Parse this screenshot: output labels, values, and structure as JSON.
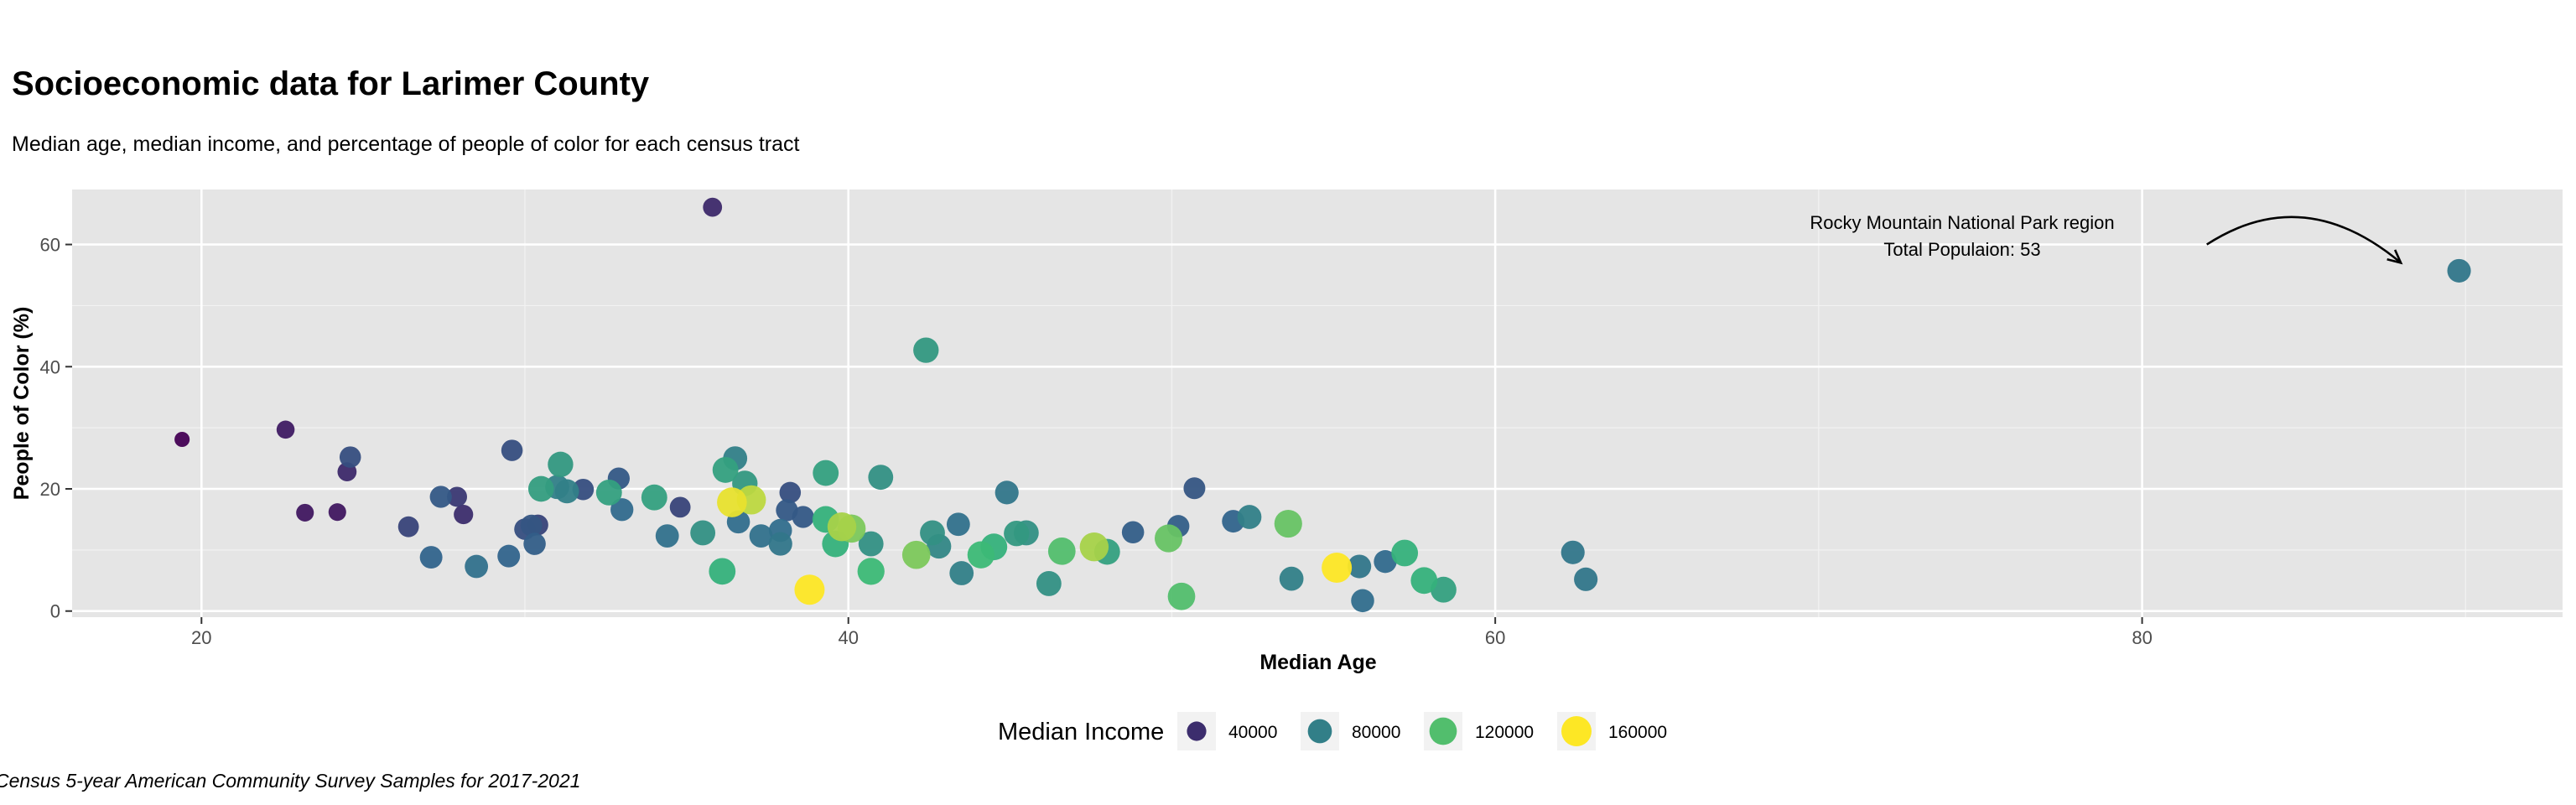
{
  "chart_data": {
    "type": "scatter",
    "title": "Socioeconomic data for Larimer County",
    "subtitle": "Median age, median income, and percentage of people of color for each census tract",
    "xlabel": "Median Age",
    "ylabel": "People of Color (%)",
    "xlim": [
      16,
      93
    ],
    "ylim": [
      -1,
      69
    ],
    "x_ticks": [
      20,
      40,
      60,
      80
    ],
    "y_ticks": [
      0,
      20,
      40,
      60
    ],
    "grid": true,
    "legend": {
      "title": "Median Income",
      "position": "bottom",
      "entries": [
        {
          "label": "40000",
          "value": 40000
        },
        {
          "label": "80000",
          "value": 80000
        },
        {
          "label": "120000",
          "value": 120000
        },
        {
          "label": "160000",
          "value": 160000
        }
      ]
    },
    "annotation": {
      "lines": [
        "Rocky Mountain National Park region",
        "Total Populaion: 53"
      ],
      "arrow_from": [
        82,
        60
      ],
      "arrow_to": [
        88,
        57
      ]
    },
    "caption": "Census 5-year American Community Survey Samples for 2017-2021",
    "color_scale": [
      "#440154",
      "#31688e",
      "#35b779",
      "#fde725"
    ],
    "points": [
      {
        "x": 19.4,
        "y": 28.1,
        "income": 20000
      },
      {
        "x": 22.6,
        "y": 29.7,
        "income": 32000
      },
      {
        "x": 23.2,
        "y": 16.1,
        "income": 30000
      },
      {
        "x": 24.2,
        "y": 16.2,
        "income": 30000
      },
      {
        "x": 24.5,
        "y": 22.8,
        "income": 38000
      },
      {
        "x": 24.6,
        "y": 25.2,
        "income": 55000
      },
      {
        "x": 26.4,
        "y": 13.8,
        "income": 50000
      },
      {
        "x": 27.1,
        "y": 8.8,
        "income": 65000
      },
      {
        "x": 27.4,
        "y": 18.7,
        "income": 60000
      },
      {
        "x": 27.9,
        "y": 18.7,
        "income": 45000
      },
      {
        "x": 28.1,
        "y": 15.8,
        "income": 40000
      },
      {
        "x": 28.5,
        "y": 7.3,
        "income": 72000
      },
      {
        "x": 29.5,
        "y": 9.0,
        "income": 65000
      },
      {
        "x": 29.6,
        "y": 26.3,
        "income": 55000
      },
      {
        "x": 30.0,
        "y": 13.4,
        "income": 55000
      },
      {
        "x": 30.2,
        "y": 14.0,
        "income": 58000
      },
      {
        "x": 30.3,
        "y": 11.0,
        "income": 62000
      },
      {
        "x": 30.4,
        "y": 14.1,
        "income": 50000
      },
      {
        "x": 30.5,
        "y": 20.0,
        "income": 98000
      },
      {
        "x": 31.0,
        "y": 20.3,
        "income": 80000
      },
      {
        "x": 31.1,
        "y": 24.0,
        "income": 95000
      },
      {
        "x": 31.3,
        "y": 19.6,
        "income": 80000
      },
      {
        "x": 31.8,
        "y": 19.9,
        "income": 55000
      },
      {
        "x": 32.6,
        "y": 19.4,
        "income": 100000
      },
      {
        "x": 32.9,
        "y": 21.7,
        "income": 60000
      },
      {
        "x": 33.0,
        "y": 16.6,
        "income": 68000
      },
      {
        "x": 34.0,
        "y": 18.6,
        "income": 100000
      },
      {
        "x": 34.4,
        "y": 12.3,
        "income": 72000
      },
      {
        "x": 34.8,
        "y": 17.0,
        "income": 50000
      },
      {
        "x": 35.5,
        "y": 12.8,
        "income": 90000
      },
      {
        "x": 35.8,
        "y": 66.1,
        "income": 38000
      },
      {
        "x": 36.1,
        "y": 6.5,
        "income": 110000
      },
      {
        "x": 36.2,
        "y": 23.1,
        "income": 100000
      },
      {
        "x": 36.4,
        "y": 17.8,
        "income": 155000
      },
      {
        "x": 36.5,
        "y": 25.0,
        "income": 80000
      },
      {
        "x": 36.6,
        "y": 14.6,
        "income": 70000
      },
      {
        "x": 36.8,
        "y": 20.9,
        "income": 95000
      },
      {
        "x": 37.0,
        "y": 18.2,
        "income": 145000
      },
      {
        "x": 37.3,
        "y": 12.3,
        "income": 72000
      },
      {
        "x": 37.9,
        "y": 13.2,
        "income": 70000
      },
      {
        "x": 37.9,
        "y": 11.0,
        "income": 75000
      },
      {
        "x": 38.1,
        "y": 16.5,
        "income": 60000
      },
      {
        "x": 38.2,
        "y": 19.4,
        "income": 55000
      },
      {
        "x": 38.6,
        "y": 15.4,
        "income": 60000
      },
      {
        "x": 38.8,
        "y": 3.5,
        "income": 160000
      },
      {
        "x": 39.3,
        "y": 22.6,
        "income": 100000
      },
      {
        "x": 39.3,
        "y": 15.0,
        "income": 110000
      },
      {
        "x": 39.6,
        "y": 11.0,
        "income": 110000
      },
      {
        "x": 39.8,
        "y": 13.8,
        "income": 140000
      },
      {
        "x": 40.1,
        "y": 13.5,
        "income": 130000
      },
      {
        "x": 40.7,
        "y": 11.0,
        "income": 90000
      },
      {
        "x": 40.7,
        "y": 6.5,
        "income": 115000
      },
      {
        "x": 41.0,
        "y": 21.9,
        "income": 90000
      },
      {
        "x": 42.1,
        "y": 9.2,
        "income": 130000
      },
      {
        "x": 42.4,
        "y": 42.7,
        "income": 95000
      },
      {
        "x": 42.6,
        "y": 12.8,
        "income": 90000
      },
      {
        "x": 42.8,
        "y": 10.6,
        "income": 85000
      },
      {
        "x": 43.4,
        "y": 14.2,
        "income": 72000
      },
      {
        "x": 43.5,
        "y": 6.2,
        "income": 80000
      },
      {
        "x": 44.1,
        "y": 9.2,
        "income": 115000
      },
      {
        "x": 44.5,
        "y": 10.5,
        "income": 110000
      },
      {
        "x": 44.9,
        "y": 19.4,
        "income": 75000
      },
      {
        "x": 45.2,
        "y": 12.7,
        "income": 95000
      },
      {
        "x": 45.5,
        "y": 12.8,
        "income": 90000
      },
      {
        "x": 46.2,
        "y": 4.5,
        "income": 90000
      },
      {
        "x": 46.6,
        "y": 9.8,
        "income": 120000
      },
      {
        "x": 47.6,
        "y": 10.5,
        "income": 140000
      },
      {
        "x": 48.0,
        "y": 9.7,
        "income": 100000
      },
      {
        "x": 48.8,
        "y": 12.9,
        "income": 62000
      },
      {
        "x": 49.9,
        "y": 11.9,
        "income": 125000
      },
      {
        "x": 50.3,
        "y": 2.4,
        "income": 120000
      },
      {
        "x": 50.2,
        "y": 13.9,
        "income": 62000
      },
      {
        "x": 50.7,
        "y": 20.1,
        "income": 58000
      },
      {
        "x": 51.9,
        "y": 14.7,
        "income": 65000
      },
      {
        "x": 52.4,
        "y": 15.4,
        "income": 80000
      },
      {
        "x": 53.6,
        "y": 14.3,
        "income": 125000
      },
      {
        "x": 53.7,
        "y": 5.3,
        "income": 80000
      },
      {
        "x": 55.1,
        "y": 7.1,
        "income": 160000
      },
      {
        "x": 55.8,
        "y": 7.3,
        "income": 75000
      },
      {
        "x": 55.9,
        "y": 1.7,
        "income": 70000
      },
      {
        "x": 56.6,
        "y": 8.1,
        "income": 68000
      },
      {
        "x": 57.2,
        "y": 9.5,
        "income": 110000
      },
      {
        "x": 57.8,
        "y": 5.0,
        "income": 110000
      },
      {
        "x": 58.4,
        "y": 3.5,
        "income": 100000
      },
      {
        "x": 62.4,
        "y": 9.6,
        "income": 75000
      },
      {
        "x": 62.8,
        "y": 5.2,
        "income": 75000
      },
      {
        "x": 89.8,
        "y": 55.7,
        "income": 75000
      }
    ]
  }
}
